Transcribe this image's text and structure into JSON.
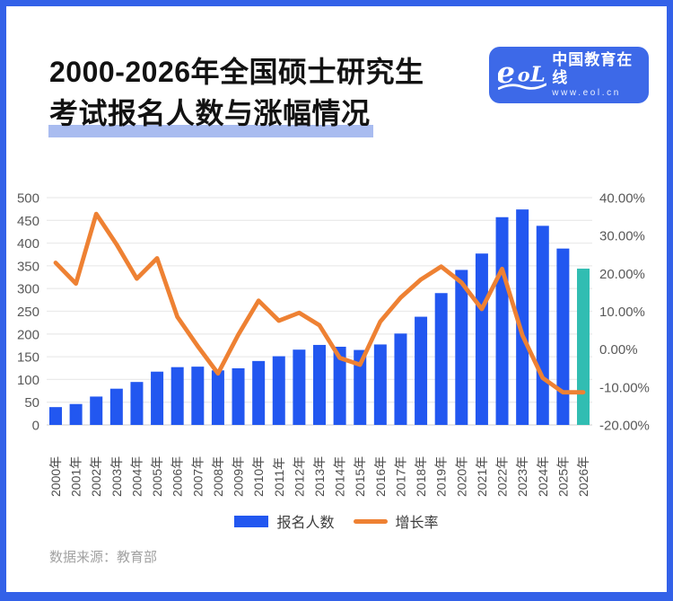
{
  "frame": {
    "border_color": "#3361e8"
  },
  "header": {
    "title_line1": "2000-2026年全国硕士研究生",
    "title_line2": "考试报名人数与涨幅情况",
    "highlight_color": "#a9bcf0",
    "logo": {
      "icon": "eol-logo",
      "brand_text": "中国教育在线",
      "url_text": "www.eol.cn",
      "bg_color": "#3d69e8"
    }
  },
  "chart_data": {
    "type": "bar+line combo",
    "categories": [
      "2000年",
      "2001年",
      "2002年",
      "2003年",
      "2004年",
      "2005年",
      "2006年",
      "2007年",
      "2008年",
      "2009年",
      "2010年",
      "2011年",
      "2012年",
      "2013年",
      "2014年",
      "2015年",
      "2016年",
      "2017年",
      "2018年",
      "2019年",
      "2020年",
      "2021年",
      "2022年",
      "2023年",
      "2024年",
      "2025年",
      "2026年"
    ],
    "series": [
      {
        "name": "报名人数",
        "type": "bar",
        "axis": "left",
        "color": "#2257f0",
        "last_value_color": "#31bdb2",
        "values": [
          39.2,
          46,
          62.4,
          79.7,
          94.5,
          117.2,
          127.1,
          128.2,
          120,
          124.6,
          140.6,
          151.1,
          165.6,
          176,
          172,
          164.9,
          177,
          201,
          238,
          290,
          341,
          377,
          457,
          474,
          438,
          388,
          343.8
        ]
      },
      {
        "name": "增长率",
        "type": "line",
        "axis": "right",
        "color": "#ee8133",
        "values": [
          22.8,
          17.3,
          35.7,
          27.7,
          18.6,
          24.0,
          8.5,
          0.8,
          -6.4,
          3.8,
          12.8,
          7.5,
          9.6,
          6.3,
          -2.3,
          -4.1,
          7.3,
          13.6,
          18.4,
          21.8,
          17.6,
          10.6,
          21.2,
          3.7,
          -7.6,
          -11.4,
          -11.4
        ]
      }
    ],
    "left_axis": {
      "min": 0,
      "max": 500,
      "step": 50,
      "tick_labels": [
        "0",
        "50",
        "100",
        "150",
        "200",
        "250",
        "300",
        "350",
        "400",
        "450",
        "500"
      ]
    },
    "right_axis": {
      "min": -20,
      "max": 40,
      "step": 10,
      "tick_labels": [
        "-20.00%",
        "-10.00%",
        "0.00%",
        "10.00%",
        "20.00%",
        "30.00%",
        "40.00%"
      ]
    },
    "grid": true,
    "legend_position": "bottom"
  },
  "footer": {
    "source": "数据来源：教育部"
  }
}
